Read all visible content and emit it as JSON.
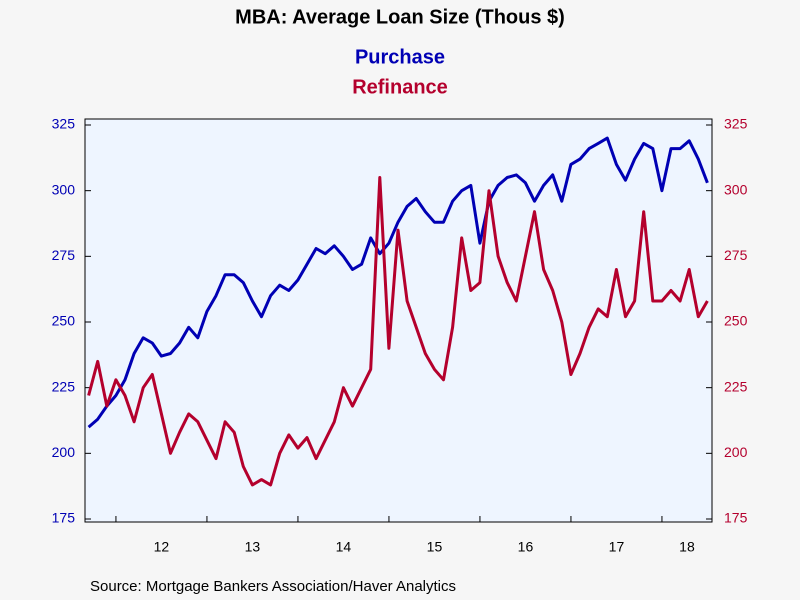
{
  "chart_data": {
    "type": "line",
    "title": "MBA: Average Loan Size (Thous $)",
    "source": "Source:  Mortgage Bankers Association/Haver Analytics",
    "x": [
      2011.7,
      2011.8,
      2011.9,
      2012.0,
      2012.1,
      2012.2,
      2012.3,
      2012.4,
      2012.5,
      2012.6,
      2012.7,
      2012.8,
      2012.9,
      2013.0,
      2013.1,
      2013.2,
      2013.3,
      2013.4,
      2013.5,
      2013.6,
      2013.7,
      2013.8,
      2013.9,
      2014.0,
      2014.1,
      2014.2,
      2014.3,
      2014.4,
      2014.5,
      2014.6,
      2014.7,
      2014.8,
      2014.9,
      2015.0,
      2015.1,
      2015.2,
      2015.3,
      2015.4,
      2015.5,
      2015.6,
      2015.7,
      2015.8,
      2015.9,
      2016.0,
      2016.1,
      2016.2,
      2016.3,
      2016.4,
      2016.5,
      2016.6,
      2016.7,
      2016.8,
      2016.9,
      2017.0,
      2017.1,
      2017.2,
      2017.3,
      2017.4,
      2017.5,
      2017.6,
      2017.7,
      2017.8,
      2017.9,
      2018.0,
      2018.1,
      2018.2,
      2018.3,
      2018.4,
      2018.5
    ],
    "series": [
      {
        "name": "Purchase",
        "color": "#0000b4",
        "axis": "y",
        "values": [
          210,
          213,
          218,
          222,
          228,
          238,
          244,
          242,
          237,
          238,
          242,
          248,
          244,
          254,
          260,
          268,
          268,
          265,
          258,
          252,
          260,
          264,
          262,
          266,
          272,
          278,
          276,
          279,
          275,
          270,
          272,
          282,
          276,
          280,
          288,
          294,
          297,
          292,
          288,
          288,
          296,
          300,
          302,
          280,
          296,
          302,
          305,
          306,
          303,
          296,
          302,
          306,
          296,
          310,
          312,
          316,
          318,
          320,
          310,
          304,
          312,
          318,
          316,
          300,
          316,
          316,
          319,
          312,
          303
        ]
      },
      {
        "name": "Refinance",
        "color": "#b4002d",
        "axis": "y2",
        "values": [
          222,
          235,
          218,
          228,
          222,
          212,
          225,
          230,
          215,
          200,
          208,
          215,
          212,
          205,
          198,
          212,
          208,
          195,
          188,
          190,
          188,
          200,
          207,
          202,
          206,
          198,
          205,
          212,
          225,
          218,
          225,
          232,
          305,
          240,
          285,
          258,
          248,
          238,
          232,
          228,
          248,
          282,
          262,
          265,
          300,
          275,
          265,
          258,
          275,
          292,
          270,
          262,
          250,
          230,
          238,
          248,
          255,
          252,
          270,
          252,
          258,
          292,
          258,
          258,
          262,
          258,
          270,
          252,
          258
        ]
      }
    ],
    "xlim": [
      2011.66,
      2018.55
    ],
    "xticks": [
      {
        "value": 2012,
        "label": "12"
      },
      {
        "value": 2013,
        "label": "13"
      },
      {
        "value": 2014,
        "label": "14"
      },
      {
        "value": 2015,
        "label": "15"
      },
      {
        "value": 2016,
        "label": "16"
      },
      {
        "value": 2017,
        "label": "17"
      },
      {
        "value": 2018,
        "label": "18"
      }
    ],
    "ylim": [
      175,
      325
    ],
    "yticks": [
      175,
      200,
      225,
      250,
      275,
      300,
      325
    ],
    "y2lim": [
      175,
      325
    ],
    "y2ticks": [
      175,
      200,
      225,
      250,
      275,
      300,
      325
    ]
  }
}
